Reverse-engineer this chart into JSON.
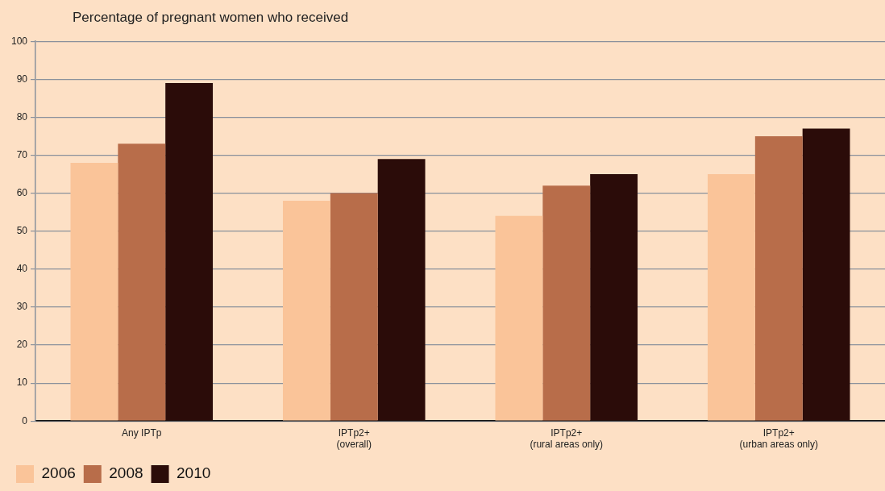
{
  "chart_data": {
    "type": "bar",
    "ylabel": "Percentage of pregnant women who received",
    "categories": [
      "Any IPTp",
      "IPTp2+\n(overall)",
      "IPTp2+\n(rural areas only)",
      "IPTp2+\n(urban areas only)"
    ],
    "series": [
      {
        "name": "2006",
        "color": "#fac499",
        "values": [
          68,
          58,
          54,
          65
        ]
      },
      {
        "name": "2008",
        "color": "#b86d4a",
        "values": [
          73,
          60,
          62,
          75
        ]
      },
      {
        "name": "2010",
        "color": "#2b0c09",
        "values": [
          89,
          69,
          65,
          77
        ]
      }
    ],
    "ylim": [
      0,
      100
    ],
    "yticks": [
      0,
      10,
      20,
      30,
      40,
      50,
      60,
      70,
      80,
      90,
      100
    ],
    "grid": "y",
    "legend": "bottom left"
  }
}
